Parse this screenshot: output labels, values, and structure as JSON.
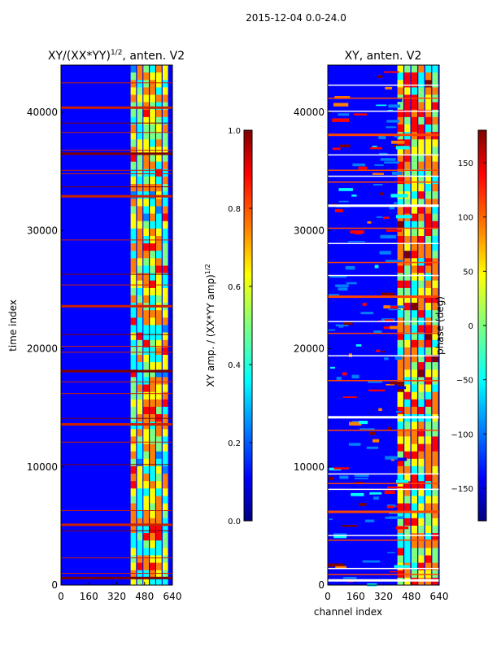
{
  "suptitle": "2015-12-04 0.0-24.0",
  "colors": {
    "bg": "#ffffff",
    "jet": [
      "#00007f",
      "#0000ff",
      "#007fff",
      "#00ffff",
      "#7fff7f",
      "#ffff00",
      "#ff7f00",
      "#ff0000",
      "#7f0000"
    ]
  },
  "chart_data": [
    {
      "type": "heatmap",
      "title": "XY/(XX*YY)",
      "title_sup": "1/2",
      "title_suffix": ", anten. V2",
      "xlabel": "",
      "ylabel": "time index",
      "xticks": [
        "0",
        "160",
        "320",
        "480",
        "640"
      ],
      "yticks": [
        "0",
        "10000",
        "20000",
        "30000",
        "40000"
      ],
      "xlim": [
        0,
        640
      ],
      "ylim": [
        0,
        44000
      ],
      "colorbar": {
        "label": "XY amp. / (XX*YY amp)",
        "label_sup": "1/2",
        "ticks": [
          "0.0",
          "0.2",
          "0.4",
          "0.6",
          "0.8",
          "1.0"
        ],
        "range": [
          0,
          1
        ]
      },
      "background_value": 0.15,
      "bright_channel_band": [
        400,
        620
      ],
      "flagged_rows_time_index": [
        600,
        1000,
        2300,
        4600,
        5100,
        6300,
        10200,
        12100,
        13600,
        14100,
        16200,
        17200,
        18100,
        19700,
        20200,
        21200,
        23600,
        25400,
        26300,
        29200,
        32900,
        33700,
        34800,
        35100,
        36500,
        36800,
        38300,
        39100,
        40400,
        42500
      ]
    },
    {
      "type": "heatmap",
      "title": "XY, anten. V2",
      "xlabel": "channel index",
      "ylabel": "",
      "xticks": [
        "0",
        "160",
        "320",
        "480",
        "640"
      ],
      "yticks": [
        "0",
        "10000",
        "20000",
        "30000",
        "40000"
      ],
      "xlim": [
        0,
        640
      ],
      "ylim": [
        0,
        44000
      ],
      "colorbar": {
        "label": "phase (deg)",
        "ticks": [
          "−150",
          "−100",
          "−50",
          "0",
          "50",
          "100",
          "150"
        ],
        "tick_values": [
          -150,
          -100,
          -50,
          0,
          50,
          100,
          150
        ],
        "range": [
          -180,
          180
        ]
      },
      "background_value": -150,
      "bright_channel_band": [
        400,
        640
      ],
      "flagged_rows_time_index": [
        400,
        900,
        1400,
        3800,
        4200,
        6200,
        8100,
        8600,
        9400,
        13100,
        14200,
        17300,
        19400,
        21300,
        22300,
        24400,
        26200,
        27300,
        28900,
        30200,
        32100,
        34100,
        34600,
        35100,
        36400,
        38100,
        40100,
        41200,
        42300
      ]
    }
  ]
}
